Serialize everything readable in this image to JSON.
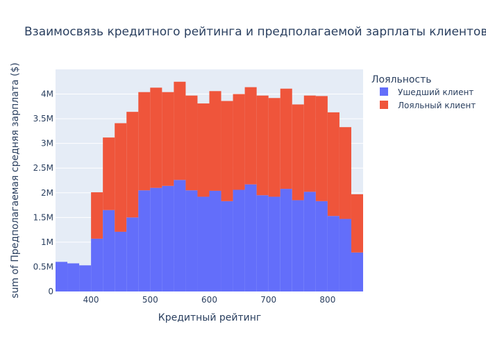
{
  "chart_data": {
    "type": "bar",
    "stacked": true,
    "title": "Взаимосвязь кредитного рейтинга и предполагаемой зарплаты клиентов",
    "xlabel": "Кредитный рейтинг",
    "ylabel": "sum of Предполагаемая средняя зарплата ($)",
    "xlim": [
      340,
      860
    ],
    "ylim": [
      0,
      4500000
    ],
    "bin_width": 20,
    "x_ticks": [
      {
        "value": 400,
        "label": "400"
      },
      {
        "value": 500,
        "label": "500"
      },
      {
        "value": 600,
        "label": "600"
      },
      {
        "value": 700,
        "label": "700"
      },
      {
        "value": 800,
        "label": "800"
      }
    ],
    "y_ticks": [
      {
        "value": 0,
        "label": "0"
      },
      {
        "value": 500000,
        "label": "0.5M"
      },
      {
        "value": 1000000,
        "label": "1M"
      },
      {
        "value": 1500000,
        "label": "1.5M"
      },
      {
        "value": 2000000,
        "label": "2M"
      },
      {
        "value": 2500000,
        "label": "2.5M"
      },
      {
        "value": 3000000,
        "label": "3M"
      },
      {
        "value": 3500000,
        "label": "3.5M"
      },
      {
        "value": 4000000,
        "label": "4M"
      }
    ],
    "bins": [
      340,
      360,
      380,
      400,
      420,
      440,
      460,
      480,
      500,
      520,
      540,
      560,
      580,
      600,
      620,
      640,
      660,
      680,
      700,
      720,
      740,
      760,
      780,
      800,
      820,
      840
    ],
    "legend_title": "Лояльность",
    "legend_position": "top-right",
    "grid": true,
    "series": [
      {
        "name": "Ушедший клиент",
        "color": "#636efa",
        "values": [
          600000,
          570000,
          530000,
          1070000,
          1650000,
          1210000,
          1500000,
          2050000,
          2100000,
          2140000,
          2260000,
          2050000,
          1920000,
          2040000,
          1830000,
          2060000,
          2170000,
          1950000,
          1920000,
          2080000,
          1850000,
          2020000,
          1830000,
          1530000,
          1470000,
          790000
        ]
      },
      {
        "name": "Лояльный клиент",
        "color": "#ef553b",
        "values": [
          0,
          0,
          0,
          940000,
          1470000,
          2200000,
          2140000,
          1990000,
          2030000,
          1900000,
          1990000,
          1920000,
          1890000,
          2020000,
          2030000,
          1940000,
          1970000,
          2020000,
          2000000,
          2030000,
          1940000,
          1950000,
          2130000,
          2100000,
          1860000,
          1180000
        ]
      }
    ]
  }
}
